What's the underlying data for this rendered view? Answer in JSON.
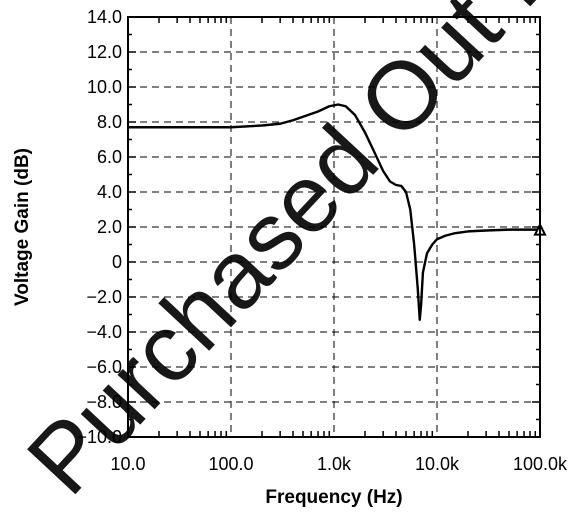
{
  "chart_data": {
    "type": "line",
    "title": "",
    "xlabel": "Frequency (Hz)",
    "ylabel": "Voltage Gain (dB)",
    "x_scale": "log",
    "xlim": [
      10,
      100000
    ],
    "ylim": [
      -10,
      14
    ],
    "grid": true,
    "x_ticks": [
      {
        "value": 10,
        "label": "10.0"
      },
      {
        "value": 100,
        "label": "100.0"
      },
      {
        "value": 1000,
        "label": "1.0k"
      },
      {
        "value": 10000,
        "label": "10.0k"
      },
      {
        "value": 100000,
        "label": "100.0k"
      }
    ],
    "y_ticks": [
      {
        "value": 14,
        "label": "14.0"
      },
      {
        "value": 12,
        "label": "12.0"
      },
      {
        "value": 10,
        "label": "10.0"
      },
      {
        "value": 8,
        "label": "8.0"
      },
      {
        "value": 6,
        "label": "6.0"
      },
      {
        "value": 4,
        "label": "4.0"
      },
      {
        "value": 2,
        "label": "2.0"
      },
      {
        "value": 0,
        "label": "0"
      },
      {
        "value": -2,
        "label": "−2.0"
      },
      {
        "value": -4,
        "label": "−4.0"
      },
      {
        "value": -6,
        "label": "−6.0"
      },
      {
        "value": -8,
        "label": "−8.0"
      },
      {
        "value": -10,
        "label": "−10.0"
      }
    ],
    "series": [
      {
        "color": "#000000",
        "marker_end": "triangle",
        "points": [
          [
            10,
            7.7
          ],
          [
            20,
            7.7
          ],
          [
            50,
            7.7
          ],
          [
            100,
            7.7
          ],
          [
            200,
            7.8
          ],
          [
            300,
            7.9
          ],
          [
            400,
            8.1
          ],
          [
            500,
            8.3
          ],
          [
            700,
            8.6
          ],
          [
            900,
            8.9
          ],
          [
            1100,
            9.0
          ],
          [
            1300,
            8.9
          ],
          [
            1600,
            8.4
          ],
          [
            2000,
            7.4
          ],
          [
            2500,
            6.2
          ],
          [
            3000,
            5.2
          ],
          [
            3500,
            4.6
          ],
          [
            4000,
            4.4
          ],
          [
            4500,
            4.35
          ],
          [
            5000,
            4.0
          ],
          [
            5500,
            3.0
          ],
          [
            6000,
            1.0
          ],
          [
            6500,
            -1.5
          ],
          [
            6800,
            -3.3
          ],
          [
            7000,
            -2.5
          ],
          [
            7300,
            -0.6
          ],
          [
            8000,
            0.5
          ],
          [
            9000,
            1.0
          ],
          [
            10000,
            1.3
          ],
          [
            12000,
            1.5
          ],
          [
            15000,
            1.65
          ],
          [
            20000,
            1.75
          ],
          [
            30000,
            1.8
          ],
          [
            50000,
            1.85
          ],
          [
            100000,
            1.85
          ]
        ]
      }
    ]
  },
  "watermark": {
    "text": "Purchased Out Proof",
    "color": "#ff0000"
  }
}
